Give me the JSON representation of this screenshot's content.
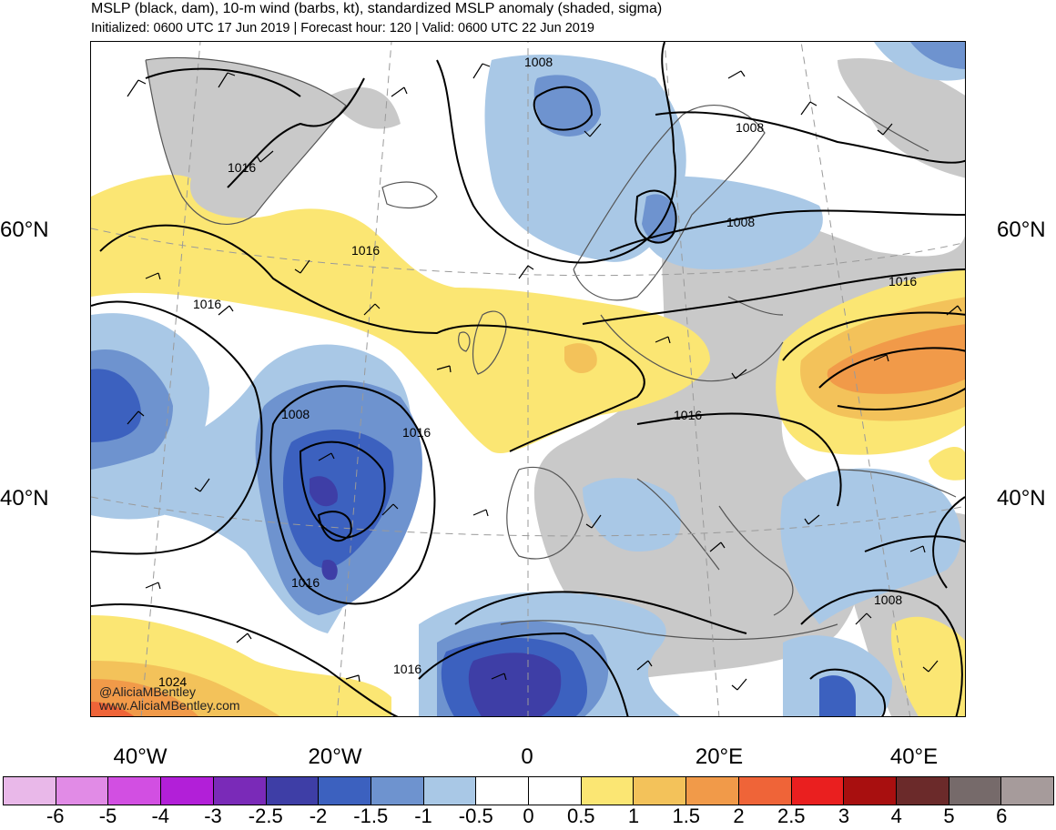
{
  "header": {
    "title": "MSLP (black, dam), 10-m wind (barbs, kt), standardized MSLP anomaly (shaded, sigma)",
    "subtitle": "Initialized: 0600 UTC 17 Jun 2019 | Forecast hour: 120 | Valid: 0600 UTC 22 Jun 2019"
  },
  "axes": {
    "lat_left": [
      "60°N",
      "40°N"
    ],
    "lat_right": [
      "60°N",
      "40°N"
    ],
    "lon_bottom": [
      "40°W",
      "20°W",
      "0",
      "20°E",
      "40°E"
    ]
  },
  "contour_labels": [
    "1008",
    "1016",
    "1008",
    "1016",
    "1008",
    "1016",
    "1016",
    "1008",
    "1016",
    "1016",
    "1016",
    "1016",
    "1024",
    "1008"
  ],
  "credit": {
    "handle": "@AliciaMBentley",
    "site": "www.AliciaMBentley.com"
  },
  "colorbar": {
    "labels": [
      "-6",
      "-5",
      "-4",
      "-3",
      "-2.5",
      "-2",
      "-1.5",
      "-1",
      "-0.5",
      "0",
      "0.5",
      "1",
      "1.5",
      "2",
      "2.5",
      "3",
      "4",
      "5",
      "6"
    ],
    "colors": [
      "#e9b8e9",
      "#e18be6",
      "#d24fe2",
      "#b21fd8",
      "#7a2ab8",
      "#3e3ea6",
      "#3c61bf",
      "#6e93cf",
      "#a9c8e6",
      "#ffffff",
      "#ffffff",
      "#fbe673",
      "#f3c25a",
      "#f19a49",
      "#ef6438",
      "#ea1f1f",
      "#a80f0f",
      "#6b2a2a",
      "#766a6a",
      "#a69b9b"
    ]
  },
  "colors": {
    "land_gray": "#c9c9c9",
    "coast": "#555555"
  }
}
